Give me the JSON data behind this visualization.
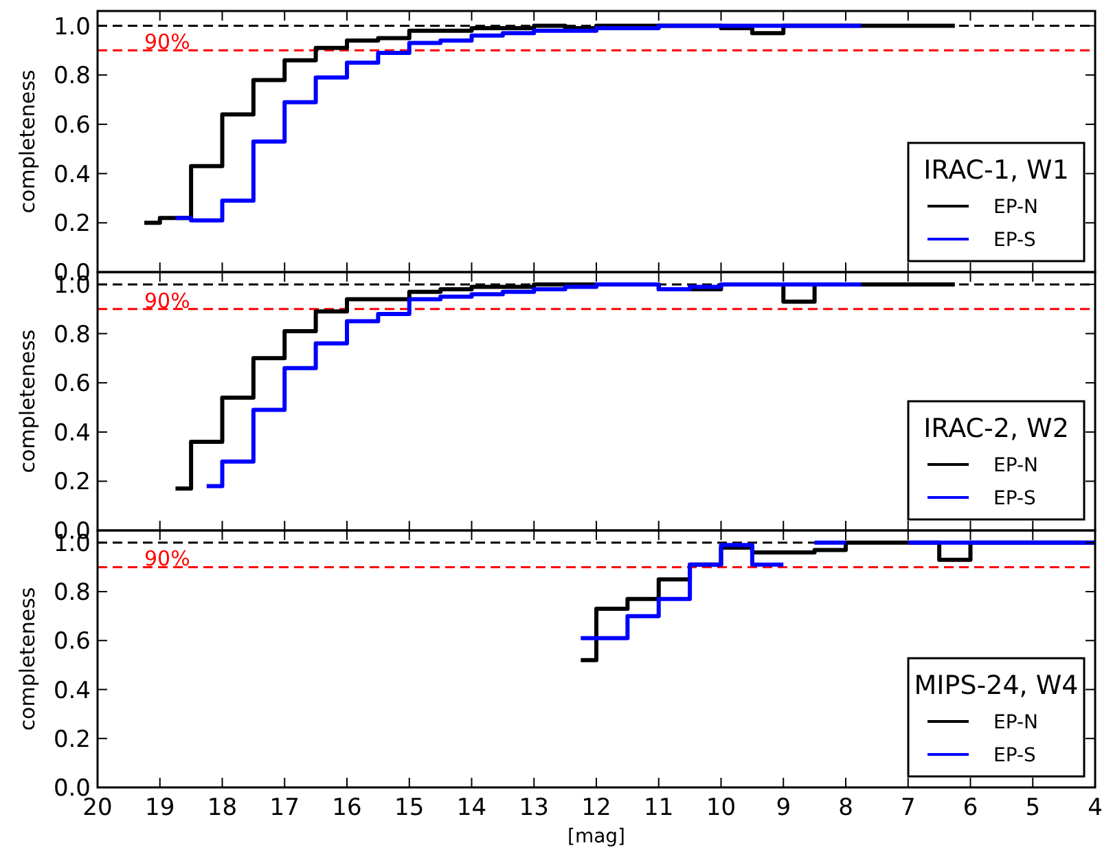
{
  "chart_data": [
    {
      "type": "step",
      "ylabel": "completeness",
      "xlim": [
        20,
        4
      ],
      "ylim": [
        0,
        1.06
      ],
      "xticks": [
        20,
        19,
        18,
        17,
        16,
        15,
        14,
        13,
        12,
        11,
        10,
        9,
        8,
        7,
        6,
        5,
        4
      ],
      "yticks": [
        {
          "value": 0,
          "label": "0.0"
        },
        {
          "value": 0.2,
          "label": "0.2"
        },
        {
          "value": 0.4,
          "label": "0.4"
        },
        {
          "value": 0.6,
          "label": "0.6"
        },
        {
          "value": 0.8,
          "label": "0.8"
        },
        {
          "value": 1,
          "label": "1.0"
        }
      ],
      "tick_labels": "y",
      "legend": "bottom right",
      "legend_title": "IRAC-1, W1",
      "grid": false,
      "ref_lines": [
        {
          "axis": "y",
          "value": 1,
          "color": "#000000",
          "line_style": "dashed"
        },
        {
          "axis": "y",
          "value": 0.9,
          "label": "90%",
          "color": "#ff0000",
          "line_style": "dashed"
        }
      ],
      "series": [
        {
          "name": "EP-N",
          "color": "#000000",
          "x": [
            19.25,
            19,
            18.5,
            18,
            17.5,
            17,
            16.5,
            16,
            15.5,
            15,
            14.5,
            14,
            13.5,
            13,
            12.5,
            12,
            11.5,
            11,
            10.5,
            10,
            9.5,
            9,
            6.25
          ],
          "values": [
            0.2,
            0.22,
            0.43,
            0.64,
            0.78,
            0.86,
            0.91,
            0.94,
            0.95,
            0.98,
            0.98,
            0.99,
            0.99,
            1.0,
            0.99,
            1.0,
            1.0,
            1.0,
            1.0,
            0.99,
            0.97,
            1.0,
            1.0
          ]
        },
        {
          "name": "EP-S",
          "color": "#0000ff",
          "x": [
            18.75,
            18.5,
            18,
            17.5,
            17,
            16.5,
            16,
            15.5,
            15,
            14.5,
            14,
            13.5,
            13,
            12.5,
            12,
            11.5,
            11,
            7.75
          ],
          "values": [
            0.22,
            0.21,
            0.29,
            0.53,
            0.69,
            0.79,
            0.85,
            0.89,
            0.93,
            0.94,
            0.96,
            0.97,
            0.98,
            0.98,
            0.99,
            0.99,
            1.0,
            1.0
          ]
        }
      ]
    },
    {
      "type": "step",
      "ylabel": "completeness",
      "xlim": [
        20,
        4
      ],
      "ylim": [
        0,
        1.05
      ],
      "xticks": [
        20,
        19,
        18,
        17,
        16,
        15,
        14,
        13,
        12,
        11,
        10,
        9,
        8,
        7,
        6,
        5,
        4
      ],
      "yticks": [
        {
          "value": 0,
          "label": "0.0"
        },
        {
          "value": 0.2,
          "label": "0.2"
        },
        {
          "value": 0.4,
          "label": "0.4"
        },
        {
          "value": 0.6,
          "label": "0.6"
        },
        {
          "value": 0.8,
          "label": "0.8"
        },
        {
          "value": 1,
          "label": "1.0"
        }
      ],
      "tick_labels": "y",
      "legend": "bottom right",
      "legend_title": "IRAC-2, W2",
      "grid": false,
      "ref_lines": [
        {
          "axis": "y",
          "value": 1,
          "color": "#000000",
          "line_style": "dashed"
        },
        {
          "axis": "y",
          "value": 0.9,
          "label": "90%",
          "color": "#ff0000",
          "line_style": "dashed"
        }
      ],
      "series": [
        {
          "name": "EP-N",
          "color": "#000000",
          "x": [
            18.75,
            18.5,
            18,
            17.5,
            17,
            16.5,
            16,
            15,
            14.5,
            14,
            13.5,
            13,
            12.5,
            12,
            11,
            10,
            9,
            8.5,
            6.25
          ],
          "values": [
            0.17,
            0.36,
            0.54,
            0.7,
            0.81,
            0.89,
            0.94,
            0.97,
            0.98,
            0.99,
            0.99,
            1.0,
            1.0,
            1.0,
            0.98,
            1.0,
            0.93,
            1.0,
            1.0
          ]
        },
        {
          "name": "EP-S",
          "color": "#0000ff",
          "x": [
            18.25,
            18,
            17.5,
            17,
            16.5,
            16,
            15.5,
            15,
            14.5,
            14,
            13.5,
            13,
            12.5,
            12,
            11.5,
            11,
            10.5,
            10,
            7.75
          ],
          "values": [
            0.18,
            0.28,
            0.49,
            0.66,
            0.76,
            0.85,
            0.88,
            0.94,
            0.95,
            0.96,
            0.97,
            0.98,
            0.99,
            1.0,
            1.0,
            0.98,
            0.99,
            1.0,
            1.0
          ]
        }
      ]
    },
    {
      "type": "step",
      "ylabel": "completeness",
      "xlabel": "[mag]",
      "xlim": [
        20,
        4
      ],
      "ylim": [
        0,
        1.05
      ],
      "xticks": [
        20,
        19,
        18,
        17,
        16,
        15,
        14,
        13,
        12,
        11,
        10,
        9,
        8,
        7,
        6,
        5,
        4
      ],
      "yticks": [
        {
          "value": 0,
          "label": "0.0"
        },
        {
          "value": 0.2,
          "label": "0.2"
        },
        {
          "value": 0.4,
          "label": "0.4"
        },
        {
          "value": 0.6,
          "label": "0.6"
        },
        {
          "value": 0.8,
          "label": "0.8"
        },
        {
          "value": 1,
          "label": "1.0"
        }
      ],
      "legend": "bottom right",
      "legend_title": "MIPS-24, W4",
      "grid": false,
      "ref_lines": [
        {
          "axis": "y",
          "value": 1,
          "color": "#000000",
          "line_style": "dashed"
        },
        {
          "axis": "y",
          "value": 0.9,
          "label": "90%",
          "color": "#ff0000",
          "line_style": "dashed"
        }
      ],
      "series": [
        {
          "name": "EP-N",
          "color": "#000000",
          "x": [
            12.25,
            12,
            11.5,
            11,
            10.5,
            10,
            9.5,
            8.5,
            8,
            6.5,
            6,
            4
          ],
          "values": [
            0.52,
            0.73,
            0.77,
            0.85,
            0.91,
            0.98,
            0.96,
            0.97,
            1.0,
            0.93,
            1.0,
            1.0
          ]
        },
        {
          "name": "EP-S",
          "color": "#0000ff",
          "x": [
            12.25,
            11.5,
            11,
            10.5,
            10,
            9.5,
            9,
            8.5,
            8,
            7,
            4
          ],
          "values": [
            0.61,
            0.7,
            0.77,
            0.91,
            0.99,
            0.91,
            null,
            1.0,
            null,
            1.0,
            1.0
          ]
        }
      ]
    }
  ]
}
